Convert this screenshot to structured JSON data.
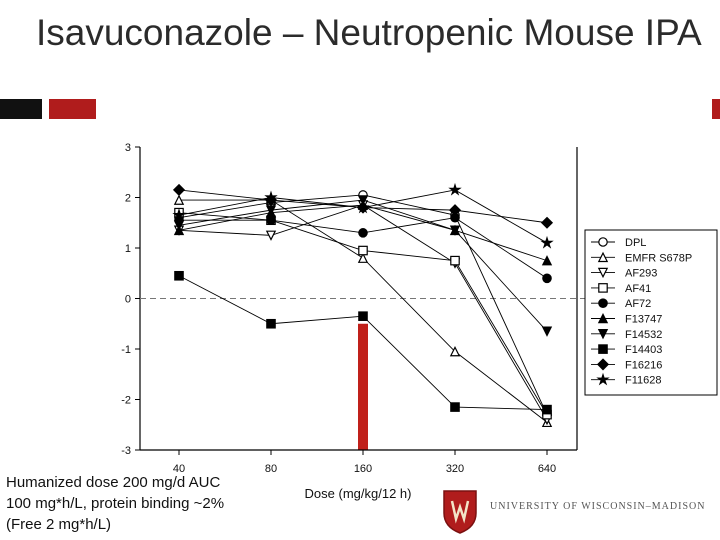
{
  "slide": {
    "title": "Isavuconazole – Neutropenic Mouse IPA",
    "footnote": [
      "Humanized dose 200 mg/d AUC",
      "100 mg*h/L, protein binding ~2%",
      "(Free 2 mg*h/L)"
    ],
    "logo_text": "UNIVERSITY OF WISCONSIN–MADISON",
    "accent_color": "#b01c1c"
  },
  "chart_data": {
    "type": "line",
    "title": "",
    "xlabel": "Dose (mg/kg/12 h)",
    "ylabel": "",
    "x_scale": "log",
    "categories": [
      "40",
      "80",
      "160",
      "320",
      "640"
    ],
    "ylim": [
      -3,
      3
    ],
    "yticks": [
      3,
      2,
      1,
      0,
      -1,
      -2,
      -3
    ],
    "reference_line": {
      "y": 0,
      "style": "dashed"
    },
    "highlight_bar": {
      "category": "160",
      "from": -0.5,
      "to": -3,
      "color": "#c0201a"
    },
    "legend_position": "right",
    "series": [
      {
        "name": "DPL",
        "marker": "circle-open",
        "values": [
          1.6,
          1.9,
          2.05,
          1.65,
          -2.3
        ]
      },
      {
        "name": "EMFR S678P",
        "marker": "triangle-open",
        "values": [
          1.95,
          1.95,
          0.8,
          -1.05,
          -2.45
        ]
      },
      {
        "name": "AF293",
        "marker": "triangle-down-open",
        "values": [
          1.35,
          1.25,
          1.85,
          0.7,
          -2.4
        ]
      },
      {
        "name": "AF41",
        "marker": "square-open",
        "values": [
          1.7,
          1.55,
          0.95,
          0.75,
          -2.3
        ]
      },
      {
        "name": "AF72",
        "marker": "circle-filled",
        "values": [
          1.55,
          1.55,
          1.3,
          1.6,
          0.4
        ]
      },
      {
        "name": "F13747",
        "marker": "triangle-filled",
        "values": [
          1.35,
          1.7,
          1.85,
          1.35,
          0.75
        ]
      },
      {
        "name": "F14532",
        "marker": "triangle-down-filled",
        "values": [
          1.45,
          1.75,
          1.95,
          1.35,
          -0.65
        ]
      },
      {
        "name": "F14403",
        "marker": "square-filled",
        "values": [
          0.45,
          -0.5,
          -0.35,
          -2.15,
          -2.2
        ]
      },
      {
        "name": "F16216",
        "marker": "diamond-filled",
        "values": [
          2.15,
          1.95,
          1.8,
          1.75,
          1.5
        ]
      },
      {
        "name": "F11628",
        "marker": "star-filled",
        "values": [
          1.65,
          2.0,
          1.8,
          2.15,
          1.1
        ]
      }
    ]
  }
}
